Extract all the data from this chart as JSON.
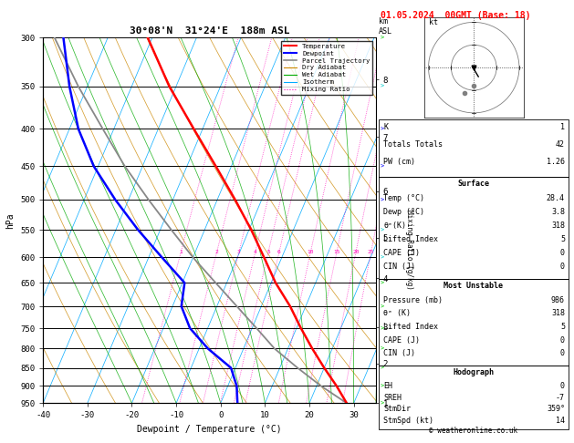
{
  "title_left": "30°08'N  31°24'E  188m ASL",
  "title_date": "01.05.2024  00GMT (Base: 18)",
  "xlabel": "Dewpoint / Temperature (°C)",
  "pressure_levels": [
    300,
    350,
    400,
    450,
    500,
    550,
    600,
    650,
    700,
    750,
    800,
    850,
    900,
    950
  ],
  "temp_ticks": [
    -40,
    -30,
    -20,
    -10,
    0,
    10,
    20,
    30
  ],
  "km_levels": [
    1,
    2,
    3,
    4,
    5,
    6,
    7,
    8
  ],
  "km_pressures": [
    965,
    850,
    757,
    647,
    569,
    490,
    412,
    343
  ],
  "mixing_ratio_values": [
    1,
    2,
    3,
    4,
    5,
    6,
    10,
    15,
    20,
    25
  ],
  "mixing_ratio_label_pressure": 590,
  "skew": 30.0,
  "temp_profile": {
    "pressure": [
      950,
      900,
      850,
      800,
      750,
      700,
      650,
      600,
      550,
      500,
      450,
      400,
      350,
      300
    ],
    "temperature": [
      28.4,
      24.5,
      20.0,
      15.5,
      11.0,
      6.5,
      1.0,
      -4.0,
      -9.5,
      -16.0,
      -23.5,
      -32.0,
      -41.5,
      -51.0
    ]
  },
  "dewpoint_profile": {
    "pressure": [
      950,
      900,
      850,
      800,
      750,
      700,
      650,
      600,
      550,
      500,
      450,
      400,
      350,
      300
    ],
    "temperature": [
      3.8,
      2.0,
      -1.0,
      -8.0,
      -14.0,
      -18.0,
      -19.5,
      -27.0,
      -35.0,
      -43.0,
      -51.0,
      -58.0,
      -64.0,
      -70.0
    ]
  },
  "parcel_profile": {
    "pressure": [
      950,
      900,
      850,
      800,
      750,
      700,
      650,
      600,
      550,
      500,
      450,
      400,
      350,
      300
    ],
    "temperature": [
      28.4,
      21.0,
      14.0,
      7.0,
      1.0,
      -5.5,
      -12.5,
      -20.0,
      -27.5,
      -35.5,
      -44.0,
      -52.5,
      -62.0,
      -72.0
    ]
  },
  "colors": {
    "temperature": "#ff0000",
    "dewpoint": "#0000ff",
    "parcel": "#888888",
    "dry_adiabat": "#cc8800",
    "wet_adiabat": "#00aa00",
    "isotherm": "#00aaff",
    "mixing_ratio": "#ff00bb",
    "background": "#ffffff",
    "grid_line": "#000000"
  },
  "stats": {
    "K": "1",
    "Totals Totals": "42",
    "PW (cm)": "1.26",
    "Surface": {
      "Temp (°C)": "28.4",
      "Dewp (°C)": "3.8",
      "θe(K)": "318",
      "Lifted Index": "5",
      "CAPE (J)": "0",
      "CIN (J)": "0"
    },
    "Most Unstable": {
      "Pressure (mb)": "986",
      "θe (K)": "318",
      "Lifted Index": "5",
      "CAPE (J)": "0",
      "CIN (J)": "0"
    },
    "Hodograph": {
      "EH": "0",
      "SREH": "-7",
      "StmDir": "359°",
      "StmSpd (kt)": "14"
    }
  }
}
